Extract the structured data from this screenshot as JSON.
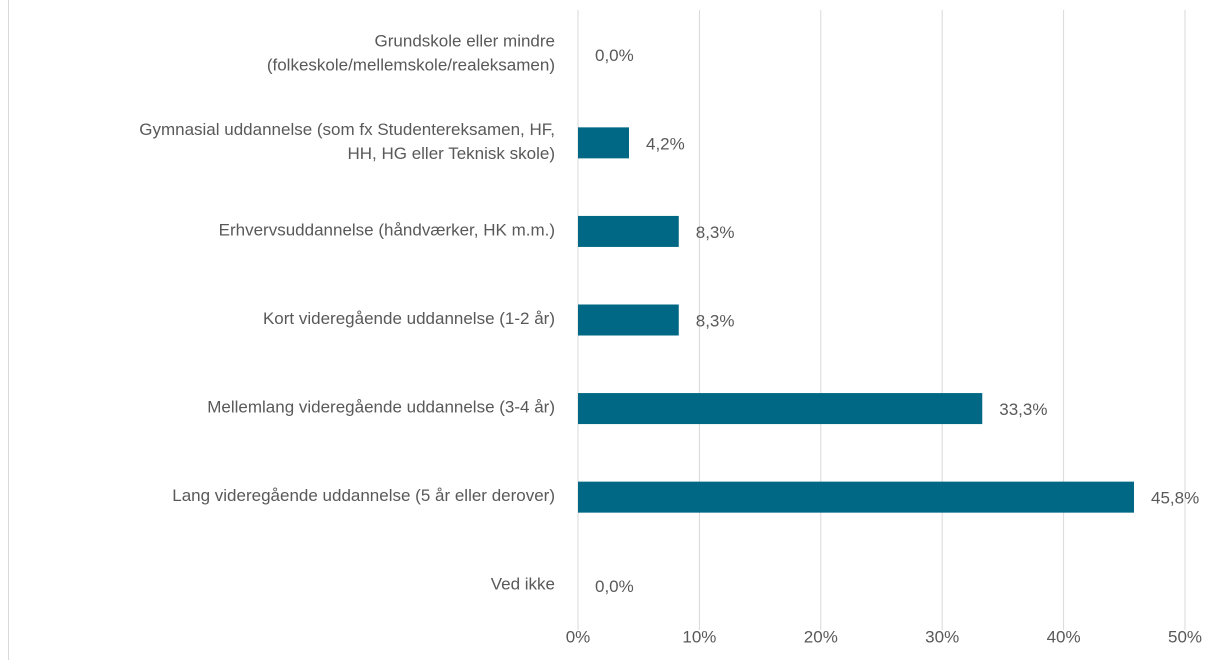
{
  "chart_data": {
    "type": "bar",
    "orientation": "horizontal",
    "categories": [
      [
        "Grundskole eller mindre",
        "(folkeskole/mellemskole/realeksamen)"
      ],
      [
        "Gymnasial uddannelse (som fx Studentereksamen, HF,",
        "HH, HG eller Teknisk skole)"
      ],
      [
        "Erhvervsuddannelse (håndværker, HK m.m.)"
      ],
      [
        "Kort videregående uddannelse (1-2 år)"
      ],
      [
        "Mellemlang videregående uddannelse (3-4 år)"
      ],
      [
        "Lang videregående uddannelse (5 år eller derover)"
      ],
      [
        "Ved ikke"
      ]
    ],
    "values": [
      0,
      4.2,
      8.3,
      8.3,
      33.3,
      45.8,
      0
    ],
    "value_labels": [
      "0,0%",
      "4,2%",
      "8,3%",
      "8,3%",
      "33,3%",
      "45,8%",
      "0,0%"
    ],
    "color": "#006784",
    "xlim": [
      0,
      50
    ],
    "xticks": [
      {
        "value": 0,
        "label": "0%"
      },
      {
        "value": 10,
        "label": "10%"
      },
      {
        "value": 20,
        "label": "20%"
      },
      {
        "value": 30,
        "label": "30%"
      },
      {
        "value": 40,
        "label": "40%"
      },
      {
        "value": 50,
        "label": "50%"
      }
    ],
    "grid": true
  }
}
